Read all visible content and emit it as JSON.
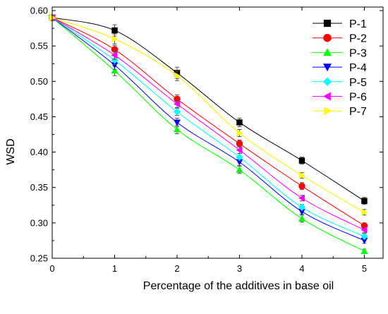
{
  "chart_data": {
    "type": "scatter",
    "title": "",
    "xlabel": "Percentage of the additives in base oil",
    "ylabel": "WSD",
    "xlim": [
      0,
      5.3
    ],
    "ylim": [
      0.25,
      0.605
    ],
    "x_ticks": [
      "0",
      "1",
      "2",
      "3",
      "4",
      "5"
    ],
    "y_ticks": [
      "0.25",
      "0.30",
      "0.35",
      "0.40",
      "0.45",
      "0.50",
      "0.55",
      "0.60"
    ],
    "grid": false,
    "legend_position": "top-right",
    "error_bars": true,
    "fit_lines": true,
    "x": [
      0,
      1,
      2,
      3,
      4,
      5
    ],
    "series": [
      {
        "name": "P-1",
        "marker": "square",
        "color": "#000000",
        "values": [
          0.59,
          0.572,
          0.512,
          0.442,
          0.388,
          0.331
        ],
        "error": [
          0.004,
          0.008,
          0.008,
          0.006,
          0.005,
          0.005
        ]
      },
      {
        "name": "P-2",
        "marker": "circle",
        "color": "#ff0000",
        "values": [
          0.59,
          0.545,
          0.475,
          0.412,
          0.352,
          0.296
        ],
        "error": [
          0.004,
          0.006,
          0.006,
          0.005,
          0.005,
          0.004
        ]
      },
      {
        "name": "P-3",
        "marker": "triangle-up",
        "color": "#00ff00",
        "values": [
          0.59,
          0.515,
          0.432,
          0.375,
          0.306,
          0.26
        ],
        "error": [
          0.004,
          0.007,
          0.006,
          0.005,
          0.005,
          0.003
        ]
      },
      {
        "name": "P-4",
        "marker": "triangle-down",
        "color": "#0000ff",
        "values": [
          0.59,
          0.523,
          0.442,
          0.386,
          0.316,
          0.275
        ],
        "error": [
          0.004,
          0.006,
          0.006,
          0.005,
          0.004,
          0.004
        ]
      },
      {
        "name": "P-5",
        "marker": "diamond",
        "color": "#00ffff",
        "values": [
          0.59,
          0.53,
          0.457,
          0.393,
          0.322,
          0.281
        ],
        "error": [
          0.004,
          0.006,
          0.005,
          0.005,
          0.004,
          0.004
        ]
      },
      {
        "name": "P-6",
        "marker": "triangle-left",
        "color": "#ff00ff",
        "values": [
          0.59,
          0.537,
          0.468,
          0.403,
          0.335,
          0.29
        ],
        "error": [
          0.004,
          0.006,
          0.005,
          0.005,
          0.004,
          0.004
        ]
      },
      {
        "name": "P-7",
        "marker": "triangle-right",
        "color": "#ffff00",
        "values": [
          0.59,
          0.56,
          0.508,
          0.427,
          0.367,
          0.315
        ],
        "error": [
          0.004,
          0.007,
          0.007,
          0.005,
          0.004,
          0.004
        ]
      }
    ]
  }
}
